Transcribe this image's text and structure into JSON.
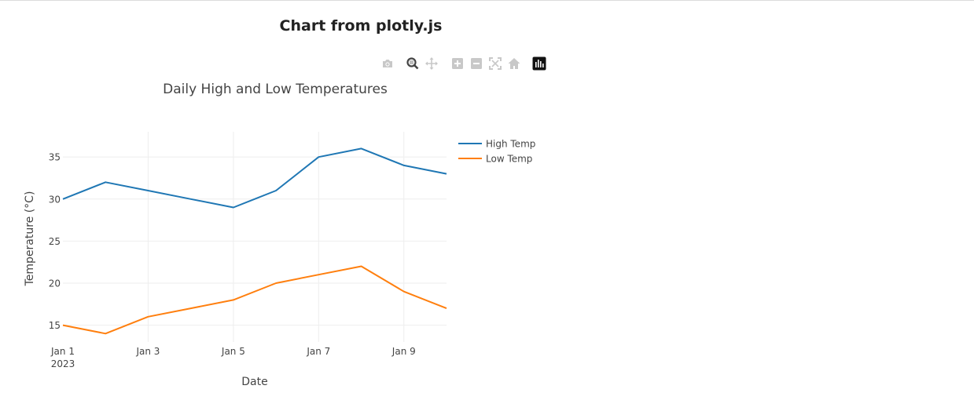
{
  "page": {
    "title": "Chart from plotly.js"
  },
  "modebar": {
    "buttons": [
      {
        "name": "camera-icon",
        "label": "Download plot as a png"
      },
      {
        "name": "zoom-icon",
        "label": "Zoom"
      },
      {
        "name": "pan-icon",
        "label": "Pan"
      },
      {
        "name": "zoom-in-icon",
        "label": "Zoom in"
      },
      {
        "name": "zoom-out-icon",
        "label": "Zoom out"
      },
      {
        "name": "autoscale-icon",
        "label": "Autoscale"
      },
      {
        "name": "home-icon",
        "label": "Reset axes"
      },
      {
        "name": "plotly-logo-icon",
        "label": "Produced with Plotly"
      }
    ]
  },
  "chart_data": {
    "type": "line",
    "title": "Daily High and Low Temperatures",
    "xlabel": "Date",
    "ylabel": "Temperature (°C)",
    "x": [
      "2023-01-01",
      "2023-01-02",
      "2023-01-03",
      "2023-01-04",
      "2023-01-05",
      "2023-01-06",
      "2023-01-07",
      "2023-01-08",
      "2023-01-09",
      "2023-01-10"
    ],
    "x_ticks": [
      {
        "date": "2023-01-01",
        "label": "Jan 1",
        "sublabel": "2023"
      },
      {
        "date": "2023-01-03",
        "label": "Jan 3",
        "sublabel": ""
      },
      {
        "date": "2023-01-05",
        "label": "Jan 5",
        "sublabel": ""
      },
      {
        "date": "2023-01-07",
        "label": "Jan 7",
        "sublabel": ""
      },
      {
        "date": "2023-01-09",
        "label": "Jan 9",
        "sublabel": ""
      }
    ],
    "y_ticks": [
      15,
      20,
      25,
      30,
      35
    ],
    "xlim": [
      "2023-01-01",
      "2023-01-10"
    ],
    "ylim": [
      13,
      38
    ],
    "grid": true,
    "legend_position": "right",
    "series": [
      {
        "name": "High Temp",
        "color": "#1f77b4",
        "values": [
          30,
          32,
          31,
          30,
          29,
          31,
          35,
          36,
          34,
          33
        ]
      },
      {
        "name": "Low Temp",
        "color": "#ff7f0e",
        "values": [
          15,
          14,
          16,
          17,
          18,
          20,
          21,
          22,
          19,
          17
        ]
      }
    ]
  }
}
